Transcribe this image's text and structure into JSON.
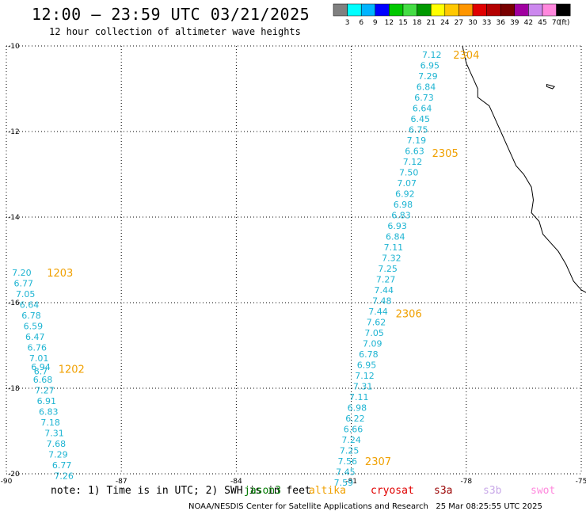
{
  "header": {
    "title": "12:00 — 23:59 UTC 03/21/2025",
    "subtitle": "12 hour collection of altimeter wave heights"
  },
  "colorbar": {
    "labels": [
      "3",
      "6",
      "9",
      "12",
      "15",
      "18",
      "21",
      "24",
      "27",
      "30",
      "33",
      "36",
      "39",
      "42",
      "45",
      "70"
    ],
    "unit": "(ft)",
    "colors": [
      "#808080",
      "#00ffff",
      "#00b4ff",
      "#0000ff",
      "#00c800",
      "#44dd44",
      "#009900",
      "#ffff00",
      "#ffc800",
      "#ff9600",
      "#e00000",
      "#b40000",
      "#780000",
      "#a000a0",
      "#cc88ee",
      "#ff88dd",
      "#000000"
    ]
  },
  "chart_data": {
    "type": "scatter",
    "x_ticks": [
      -90,
      -87,
      -84,
      -81,
      -78,
      -75
    ],
    "y_ticks": [
      -10,
      -12,
      -14,
      -16,
      -18,
      -20
    ],
    "xlim": [
      -90,
      -75
    ],
    "ylim": [
      -20,
      -10
    ],
    "grid": true,
    "passes": [
      {
        "name": "1203",
        "label_at": [
          -88.6,
          -15.3
        ],
        "points": [
          {
            "lon": -89.6,
            "lat": -15.3,
            "value": "7.20"
          },
          {
            "lon": -89.55,
            "lat": -15.55,
            "value": "6.77"
          },
          {
            "lon": -89.5,
            "lat": -15.8,
            "value": "7.05"
          },
          {
            "lon": -89.4,
            "lat": -16.05,
            "value": "6.64"
          },
          {
            "lon": -89.35,
            "lat": -16.3,
            "value": "6.78"
          },
          {
            "lon": -89.3,
            "lat": -16.55,
            "value": "6.59"
          },
          {
            "lon": -89.25,
            "lat": -16.8,
            "value": "6.47"
          },
          {
            "lon": -89.2,
            "lat": -17.05,
            "value": "6.76"
          }
        ]
      },
      {
        "name": "1202",
        "label_at": [
          -88.3,
          -17.55
        ],
        "points": [
          {
            "lon": -89.15,
            "lat": -17.3,
            "value": "7.01"
          },
          {
            "lon": -89.1,
            "lat": -17.5,
            "value": "6.94"
          },
          {
            "lon": -89.1,
            "lat": -17.6,
            "value": "6.7"
          },
          {
            "lon": -89.05,
            "lat": -17.8,
            "value": "6.68"
          },
          {
            "lon": -89.0,
            "lat": -18.05,
            "value": "7.27"
          },
          {
            "lon": -88.95,
            "lat": -18.3,
            "value": "6.91"
          },
          {
            "lon": -88.9,
            "lat": -18.55,
            "value": "6.83"
          },
          {
            "lon": -88.85,
            "lat": -18.8,
            "value": "7.18"
          },
          {
            "lon": -88.75,
            "lat": -19.05,
            "value": "7.31"
          },
          {
            "lon": -88.7,
            "lat": -19.3,
            "value": "7.68"
          },
          {
            "lon": -88.65,
            "lat": -19.55,
            "value": "7.29"
          },
          {
            "lon": -88.55,
            "lat": -19.8,
            "value": "6.77"
          },
          {
            "lon": -88.5,
            "lat": -20.05,
            "value": "7.26"
          }
        ]
      },
      {
        "name": "2304",
        "label_at": [
          -78.0,
          -10.2
        ],
        "points": [
          {
            "lon": -78.9,
            "lat": -10.2,
            "value": "7.12"
          },
          {
            "lon": -78.95,
            "lat": -10.45,
            "value": "6.95"
          },
          {
            "lon": -79.0,
            "lat": -10.7,
            "value": "7.29"
          },
          {
            "lon": -79.05,
            "lat": -10.95,
            "value": "6.84"
          },
          {
            "lon": -79.1,
            "lat": -11.2,
            "value": "6.73"
          },
          {
            "lon": -79.15,
            "lat": -11.45,
            "value": "6.64"
          },
          {
            "lon": -79.2,
            "lat": -11.7,
            "value": "6.45"
          },
          {
            "lon": -79.25,
            "lat": -11.95,
            "value": "6.75"
          }
        ]
      },
      {
        "name": "2305",
        "label_at": [
          -78.55,
          -12.5
        ],
        "points": [
          {
            "lon": -79.3,
            "lat": -12.2,
            "value": "7.19"
          },
          {
            "lon": -79.35,
            "lat": -12.45,
            "value": "6.63"
          },
          {
            "lon": -79.4,
            "lat": -12.7,
            "value": "7.12"
          },
          {
            "lon": -79.5,
            "lat": -12.95,
            "value": "7.50"
          },
          {
            "lon": -79.55,
            "lat": -13.2,
            "value": "7.07"
          },
          {
            "lon": -79.6,
            "lat": -13.45,
            "value": "6.92"
          },
          {
            "lon": -79.65,
            "lat": -13.7,
            "value": "6.98"
          },
          {
            "lon": -79.7,
            "lat": -13.95,
            "value": "6.83"
          },
          {
            "lon": -79.8,
            "lat": -14.2,
            "value": "6.93"
          },
          {
            "lon": -79.85,
            "lat": -14.45,
            "value": "6.84"
          },
          {
            "lon": -79.9,
            "lat": -14.7,
            "value": "7.11"
          },
          {
            "lon": -79.95,
            "lat": -14.95,
            "value": "7.32"
          },
          {
            "lon": -80.05,
            "lat": -15.2,
            "value": "7.25"
          },
          {
            "lon": -80.1,
            "lat": -15.45,
            "value": "7.27"
          },
          {
            "lon": -80.15,
            "lat": -15.7,
            "value": "7.44"
          },
          {
            "lon": -80.2,
            "lat": -15.95,
            "value": "7.48"
          }
        ]
      },
      {
        "name": "2306",
        "label_at": [
          -79.5,
          -16.25
        ],
        "points": [
          {
            "lon": -80.3,
            "lat": -16.2,
            "value": "7.44"
          },
          {
            "lon": -80.35,
            "lat": -16.45,
            "value": "7.62"
          },
          {
            "lon": -80.4,
            "lat": -16.7,
            "value": "7.05"
          },
          {
            "lon": -80.45,
            "lat": -16.95,
            "value": "7.09"
          },
          {
            "lon": -80.55,
            "lat": -17.2,
            "value": "6.78"
          },
          {
            "lon": -80.6,
            "lat": -17.45,
            "value": "6.95"
          },
          {
            "lon": -80.65,
            "lat": -17.7,
            "value": "7.12"
          },
          {
            "lon": -80.7,
            "lat": -17.95,
            "value": "7.31"
          },
          {
            "lon": -80.8,
            "lat": -18.2,
            "value": "7.11"
          },
          {
            "lon": -80.85,
            "lat": -18.45,
            "value": "6.98"
          },
          {
            "lon": -80.9,
            "lat": -18.7,
            "value": "6.22"
          },
          {
            "lon": -80.95,
            "lat": -18.95,
            "value": "6.66"
          },
          {
            "lon": -81.0,
            "lat": -19.2,
            "value": "7.24"
          },
          {
            "lon": -81.05,
            "lat": -19.45,
            "value": "7.25"
          }
        ]
      },
      {
        "name": "2307",
        "label_at": [
          -80.3,
          -19.7
        ],
        "points": [
          {
            "lon": -81.1,
            "lat": -19.7,
            "value": "7.56"
          },
          {
            "lon": -81.15,
            "lat": -19.95,
            "value": "7.45"
          },
          {
            "lon": -81.2,
            "lat": -20.2,
            "value": "7.59"
          }
        ]
      }
    ],
    "coastline": [
      [
        -78.1,
        -10.0
      ],
      [
        -78.05,
        -10.2
      ],
      [
        -78.0,
        -10.4
      ],
      [
        -77.9,
        -10.6
      ],
      [
        -77.8,
        -10.8
      ],
      [
        -77.7,
        -11.0
      ],
      [
        -77.7,
        -11.2
      ],
      [
        -77.4,
        -11.4
      ],
      [
        -77.3,
        -11.6
      ],
      [
        -77.2,
        -11.8
      ],
      [
        -77.1,
        -12.0
      ],
      [
        -77.0,
        -12.2
      ],
      [
        -76.9,
        -12.4
      ],
      [
        -76.8,
        -12.6
      ],
      [
        -76.7,
        -12.8
      ],
      [
        -76.5,
        -13.0
      ],
      [
        -76.3,
        -13.3
      ],
      [
        -76.25,
        -13.6
      ],
      [
        -76.3,
        -13.9
      ],
      [
        -76.1,
        -14.1
      ],
      [
        -76.0,
        -14.4
      ],
      [
        -75.8,
        -14.6
      ],
      [
        -75.6,
        -14.8
      ],
      [
        -75.4,
        -15.1
      ],
      [
        -75.3,
        -15.3
      ],
      [
        -75.2,
        -15.5
      ],
      [
        -75.0,
        -15.7
      ],
      [
        -74.8,
        -15.8
      ]
    ],
    "island": [
      [
        -75.9,
        -10.9
      ],
      [
        -75.7,
        -10.95
      ],
      [
        -75.75,
        -11.0
      ],
      [
        -75.9,
        -10.95
      ]
    ]
  },
  "footer": {
    "note": "note: 1) Time is in UTC; 2) SWH is in feet",
    "satellites": [
      {
        "name": "jason3",
        "color": "#007a00"
      },
      {
        "name": "altika",
        "color": "#f0a000"
      },
      {
        "name": "cryosat",
        "color": "#e00000"
      },
      {
        "name": "s3a",
        "color": "#990000"
      },
      {
        "name": "s3b",
        "color": "#c8a8e8"
      },
      {
        "name": "swot",
        "color": "#ff88dd"
      }
    ],
    "credit": "NOAA/NESDIS Center for Satellite Applications and Research   25 Mar 08:25:55 UTC 2025"
  }
}
